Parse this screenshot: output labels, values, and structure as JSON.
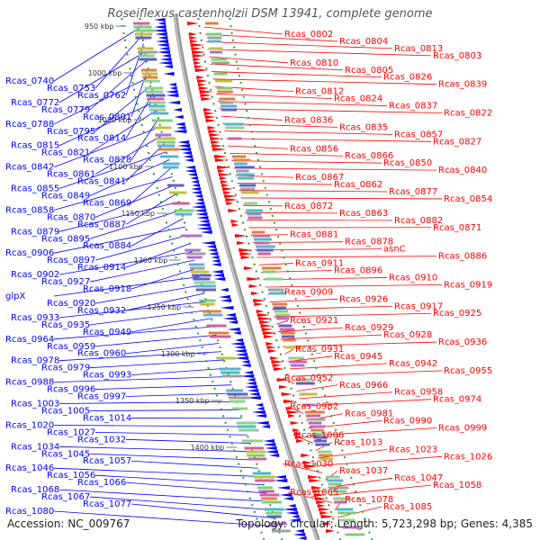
{
  "title": "Roseiflexus castenholzii DSM 13941, complete genome",
  "footer": {
    "accession": "Accession: NC_009767",
    "summary": "Topology: circular; Length: 5,723,298 bp; Genes: 4,385"
  },
  "colors": {
    "reverse_strand": "#0000ff",
    "forward_strand": "#ff0000",
    "backbone": "#999999",
    "tick_marks": "#339933"
  },
  "scale_ticks": [
    "950 kbp",
    "1000 kbp",
    "1050 kbp",
    "1100 kbp",
    "1150 kbp",
    "1200 kbp",
    "1250 kbp",
    "1300 kbp",
    "1350 kbp",
    "1400 kbp"
  ],
  "left_labels": [
    "Rcas_0740",
    "Rcas_0753",
    "Rcas_0762",
    "Rcas_0772",
    "Rcas_0779",
    "Rcas_0801",
    "Rcas_0788",
    "Rcas_0795",
    "Rcas_0814",
    "Rcas_0815",
    "Rcas_0821",
    "Rcas_0828",
    "Rcas_0842",
    "Rcas_0861",
    "Rcas_0841",
    "Rcas_0855",
    "Rcas_0849",
    "Rcas_0869",
    "Rcas_0858",
    "Rcas_0870",
    "Rcas_0887",
    "Rcas_0879",
    "Rcas_0895",
    "Rcas_0884",
    "Rcas_0906",
    "Rcas_0897",
    "Rcas_0914",
    "Rcas_0902",
    "Rcas_0927",
    "Rcas_0918",
    "glpX",
    "Rcas_0920",
    "Rcas_0932",
    "Rcas_0933",
    "Rcas_0935",
    "Rcas_0949",
    "Rcas_0964",
    "Rcas_0959",
    "Rcas_0960",
    "Rcas_0978",
    "Rcas_0979",
    "Rcas_0993",
    "Rcas_0988",
    "Rcas_0996",
    "Rcas_0997",
    "Rcas_1003",
    "Rcas_1005",
    "Rcas_1014",
    "Rcas_1020",
    "Rcas_1027",
    "Rcas_1032",
    "Rcas_1034",
    "Rcas_1045",
    "Rcas_1057",
    "Rcas_1046",
    "Rcas_1056",
    "Rcas_1066",
    "Rcas_1068",
    "Rcas_1067",
    "Rcas_1077",
    "Rcas_1080"
  ],
  "right_labels": [
    "Rcas_0802",
    "Rcas_0804",
    "Rcas_0813",
    "Rcas_0803",
    "Rcas_0810",
    "Rcas_0805",
    "Rcas_0826",
    "Rcas_0839",
    "Rcas_0812",
    "Rcas_0824",
    "Rcas_0837",
    "Rcas_0822",
    "Rcas_0836",
    "Rcas_0835",
    "Rcas_0857",
    "Rcas_0827",
    "Rcas_0856",
    "Rcas_0866",
    "Rcas_0850",
    "Rcas_0840",
    "Rcas_0867",
    "Rcas_0862",
    "Rcas_0877",
    "Rcas_0854",
    "Rcas_0872",
    "Rcas_0863",
    "Rcas_0882",
    "Rcas_0871",
    "Rcas_0881",
    "Rcas_0878",
    "asnC",
    "Rcas_0886",
    "Rcas_0911",
    "Rcas_0896",
    "Rcas_0910",
    "Rcas_0919",
    "Rcas_0909",
    "Rcas_0926",
    "Rcas_0917",
    "Rcas_0925",
    "Rcas_0921",
    "Rcas_0929",
    "Rcas_0928",
    "Rcas_0936",
    "Rcas_0931",
    "Rcas_0945",
    "Rcas_0942",
    "Rcas_0955",
    "Rcas_0952",
    "Rcas_0966",
    "Rcas_0958",
    "Rcas_0974",
    "Rcas_0982",
    "Rcas_0981",
    "Rcas_0990",
    "Rcas_0999",
    "Rcas_1006",
    "Rcas_1013",
    "Rcas_1023",
    "Rcas_1026",
    "Rcas_1030",
    "Rcas_1037",
    "Rcas_1047",
    "Rcas_1058",
    "Rcas_1065",
    "Rcas_1078",
    "Rcas_1085"
  ]
}
